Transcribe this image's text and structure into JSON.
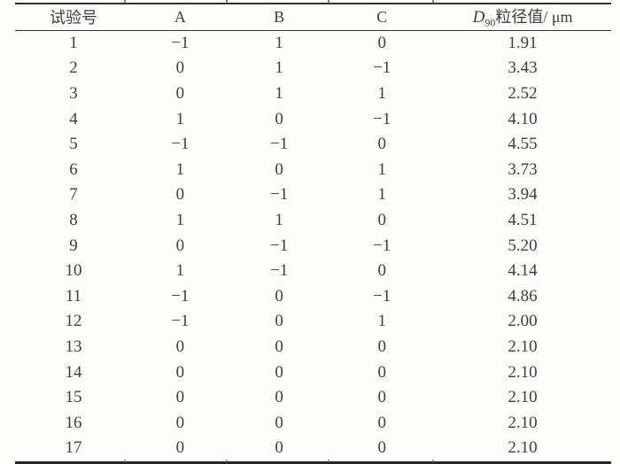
{
  "table": {
    "columns": [
      "试验号",
      "A",
      "B",
      "C"
    ],
    "d90_column": {
      "symbol": "D",
      "subscript": "90",
      "suffix": "粒径值/ μm"
    },
    "rows": [
      {
        "no": "1",
        "a": "−1",
        "b": "1",
        "c": "0",
        "d90": "1.91"
      },
      {
        "no": "2",
        "a": "0",
        "b": "1",
        "c": "−1",
        "d90": "3.43"
      },
      {
        "no": "3",
        "a": "0",
        "b": "1",
        "c": "1",
        "d90": "2.52"
      },
      {
        "no": "4",
        "a": "1",
        "b": "0",
        "c": "−1",
        "d90": "4.10"
      },
      {
        "no": "5",
        "a": "−1",
        "b": "−1",
        "c": "0",
        "d90": "4.55"
      },
      {
        "no": "6",
        "a": "1",
        "b": "0",
        "c": "1",
        "d90": "3.73"
      },
      {
        "no": "7",
        "a": "0",
        "b": "−1",
        "c": "1",
        "d90": "3.94"
      },
      {
        "no": "8",
        "a": "1",
        "b": "1",
        "c": "0",
        "d90": "4.51"
      },
      {
        "no": "9",
        "a": "0",
        "b": "−1",
        "c": "−1",
        "d90": "5.20"
      },
      {
        "no": "10",
        "a": "1",
        "b": "−1",
        "c": "0",
        "d90": "4.14"
      },
      {
        "no": "11",
        "a": "−1",
        "b": "0",
        "c": "−1",
        "d90": "4.86"
      },
      {
        "no": "12",
        "a": "−1",
        "b": "0",
        "c": "1",
        "d90": "2.00"
      },
      {
        "no": "13",
        "a": "0",
        "b": "0",
        "c": "0",
        "d90": "2.10"
      },
      {
        "no": "14",
        "a": "0",
        "b": "0",
        "c": "0",
        "d90": "2.10"
      },
      {
        "no": "15",
        "a": "0",
        "b": "0",
        "c": "0",
        "d90": "2.10"
      },
      {
        "no": "16",
        "a": "0",
        "b": "0",
        "c": "0",
        "d90": "2.10"
      },
      {
        "no": "17",
        "a": "0",
        "b": "0",
        "c": "0",
        "d90": "2.10"
      }
    ]
  },
  "colors": {
    "background": "#fdfdfc",
    "text": "#3f3f3f",
    "rule": "#2f2f2f"
  }
}
